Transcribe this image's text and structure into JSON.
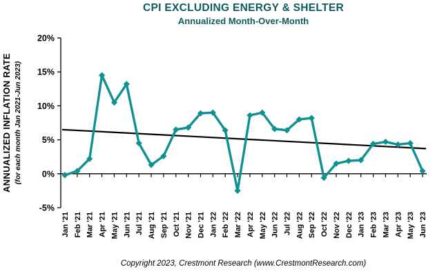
{
  "header": {
    "title": "CPI EXCLUDING ENERGY & SHELTER",
    "subtitle": "Annualized Month-Over-Month"
  },
  "y_axis": {
    "title": "ANNUALIZED INFLATION RATE",
    "subtitle": "(for each month Jan 2021-Jun 2023)"
  },
  "footer": {
    "copyright": "Copyright 2023, Crestmont Research (www.CrestmontResearch.com)"
  },
  "colors": {
    "line": "#109191",
    "trend": "#000000",
    "title": "#0d5c5c",
    "axis": "#000000"
  },
  "chart_data": {
    "type": "line",
    "title": "CPI EXCLUDING ENERGY & SHELTER",
    "subtitle": "Annualized Month-Over-Month",
    "xlabel": "",
    "ylabel": "ANNUALIZED INFLATION RATE (for each month Jan 2021-Jun 2023)",
    "categories": [
      "Jan '21",
      "Feb '21",
      "Mar '21",
      "Apr '21",
      "May '21",
      "Jun '21",
      "Jul '21",
      "Aug '21",
      "Sep '21",
      "Oct '21",
      "Nov '21",
      "Dec '21",
      "Jan '22",
      "Feb '22",
      "Mar '22",
      "Apr '22",
      "May '22",
      "Jun '22",
      "Jul '22",
      "Aug '22",
      "Sep '22",
      "Oct '22",
      "Nov '22",
      "Dec '22",
      "Jan '23",
      "Feb '23",
      "Mar '23",
      "Apr '23",
      "May '23",
      "Jun '23"
    ],
    "series": [
      {
        "name": "Annualized Month-Over-Month",
        "values": [
          -0.2,
          0.4,
          2.2,
          14.5,
          10.5,
          13.2,
          4.5,
          1.3,
          2.6,
          6.5,
          6.8,
          8.9,
          9.0,
          6.4,
          -2.5,
          8.6,
          9.0,
          6.6,
          6.4,
          8.0,
          8.2,
          -0.6,
          1.5,
          1.9,
          2.0,
          4.4,
          4.7,
          4.3,
          4.5,
          0.4
        ]
      }
    ],
    "trendline": {
      "start": 6.5,
      "end": 3.7
    },
    "ylim": [
      -5,
      20
    ],
    "yticks": [
      -5,
      0,
      5,
      10,
      15,
      20
    ],
    "ytick_format": "percent",
    "marker": "diamond",
    "grid": false,
    "legend": "none"
  }
}
